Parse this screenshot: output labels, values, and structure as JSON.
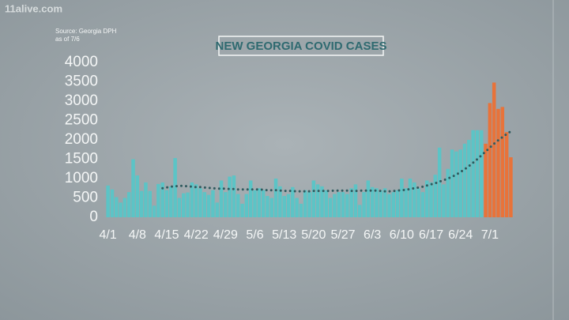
{
  "chart_data": {
    "type": "bar",
    "title": "NEW GEORGIA COVID CASES",
    "source": "Source: Georgia DPH",
    "as_of": "as of 7/6",
    "watermark": "11alive.com",
    "categories": [
      "4/1",
      null,
      null,
      null,
      null,
      null,
      null,
      "4/8",
      null,
      null,
      null,
      null,
      null,
      null,
      "4/15",
      null,
      null,
      null,
      null,
      null,
      null,
      "4/22",
      null,
      null,
      null,
      null,
      null,
      null,
      "4/29",
      null,
      null,
      null,
      null,
      null,
      null,
      "5/6",
      null,
      null,
      null,
      null,
      null,
      null,
      "5/13",
      null,
      null,
      null,
      null,
      null,
      null,
      "5/20",
      null,
      null,
      null,
      null,
      null,
      null,
      "5/27",
      null,
      null,
      null,
      null,
      null,
      null,
      "6/3",
      null,
      null,
      null,
      null,
      null,
      null,
      "6/10",
      null,
      null,
      null,
      null,
      null,
      null,
      "6/17",
      null,
      null,
      null,
      null,
      null,
      null,
      "6/24",
      null,
      null,
      null,
      null,
      null,
      null,
      "7/1",
      null,
      null,
      null,
      null,
      null
    ],
    "series": [
      {
        "color": "#5cc4c6",
        "values": [
          820,
          720,
          520,
          380,
          500,
          650,
          1500,
          1080,
          680,
          900,
          680,
          300,
          860,
          900,
          700,
          800,
          1530,
          500,
          620,
          640,
          900,
          850,
          750,
          650,
          580,
          700,
          380,
          950,
          650,
          1050,
          1080,
          600,
          350,
          600,
          950,
          700,
          750,
          700,
          550,
          500,
          1000,
          800,
          550,
          600,
          780,
          500,
          350,
          700,
          650,
          950,
          850,
          800,
          700,
          500,
          600,
          650,
          650,
          600,
          750,
          850,
          320,
          650,
          950,
          780,
          750,
          700,
          750,
          600,
          650,
          700,
          1000,
          750,
          1000,
          900,
          750,
          650,
          950,
          900,
          1100,
          1800,
          850,
          1250,
          1750,
          1700,
          1750,
          1900,
          2000,
          2250,
          2250,
          2250,
          null,
          null,
          null,
          null,
          null,
          null,
          null
        ]
      },
      {
        "color": "#e8733a",
        "values": [
          null,
          null,
          null,
          null,
          null,
          null,
          null,
          null,
          null,
          null,
          null,
          null,
          null,
          null,
          null,
          null,
          null,
          null,
          null,
          null,
          null,
          null,
          null,
          null,
          null,
          null,
          null,
          null,
          null,
          null,
          null,
          null,
          null,
          null,
          null,
          null,
          null,
          null,
          null,
          null,
          null,
          null,
          null,
          null,
          null,
          null,
          null,
          null,
          null,
          null,
          null,
          null,
          null,
          null,
          null,
          null,
          null,
          null,
          null,
          null,
          null,
          null,
          null,
          null,
          null,
          null,
          null,
          null,
          null,
          null,
          null,
          null,
          null,
          null,
          null,
          null,
          null,
          null,
          null,
          null,
          null,
          null,
          null,
          null,
          null,
          null,
          null,
          null,
          null,
          null,
          1900,
          2950,
          3480,
          2800,
          2850,
          2200,
          1550
        ]
      }
    ],
    "moving_average": {
      "color": "#2f5a5e",
      "values": [
        null,
        null,
        null,
        null,
        null,
        null,
        null,
        null,
        null,
        null,
        null,
        null,
        null,
        750,
        770,
        790,
        800,
        810,
        810,
        800,
        790,
        780,
        780,
        770,
        760,
        750,
        740,
        740,
        740,
        730,
        730,
        720,
        720,
        720,
        720,
        720,
        720,
        710,
        700,
        700,
        700,
        690,
        680,
        680,
        680,
        670,
        670,
        670,
        670,
        680,
        680,
        680,
        680,
        680,
        690,
        690,
        690,
        690,
        680,
        680,
        690,
        690,
        690,
        690,
        690,
        680,
        670,
        670,
        680,
        690,
        700,
        710,
        730,
        750,
        770,
        790,
        820,
        850,
        880,
        920,
        960,
        1000,
        1050,
        1100,
        1170,
        1240,
        1320,
        1410,
        1500,
        1600,
        1700,
        1800,
        1900,
        1990,
        2070,
        2150,
        2220
      ]
    },
    "ylim": [
      0,
      4000
    ],
    "yticks": [
      0,
      500,
      1000,
      1500,
      2000,
      2500,
      3000,
      3500,
      4000
    ],
    "grid": false
  }
}
